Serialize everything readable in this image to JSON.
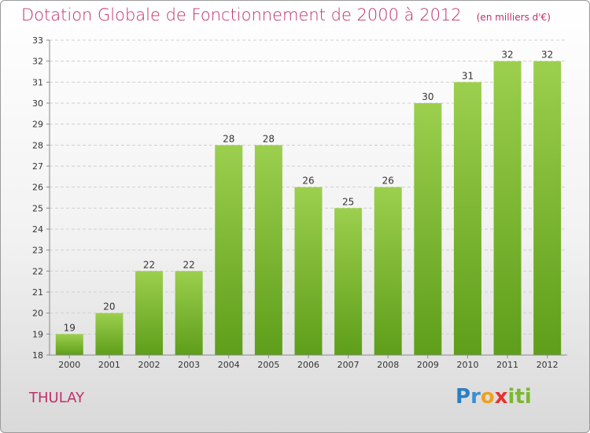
{
  "header": {
    "title": "Dotation Globale de Fonctionnement de 2000 à 2012",
    "subtitle": "(en milliers d'€)"
  },
  "footer": {
    "commune": "THULAY",
    "logo_letters": [
      "P",
      "r",
      "o",
      "x",
      "i",
      "t",
      "i"
    ],
    "logo_colors": [
      "#2c7fc0",
      "#3a8fd0",
      "#f0a020",
      "#e83030",
      "#7ab830",
      "#7ab830",
      "#7ab830"
    ]
  },
  "chart_data": {
    "type": "bar",
    "title": "Dotation Globale de Fonctionnement de 2000 à 2012",
    "subtitle": "(en milliers d'€)",
    "categories": [
      "2000",
      "2001",
      "2002",
      "2003",
      "2004",
      "2005",
      "2006",
      "2007",
      "2008",
      "2009",
      "2010",
      "2011",
      "2012"
    ],
    "values": [
      19,
      20,
      22,
      22,
      28,
      28,
      26,
      25,
      26,
      30,
      31,
      32,
      32
    ],
    "ylim": [
      18,
      33
    ],
    "yticks": [
      18,
      19,
      20,
      21,
      22,
      23,
      24,
      25,
      26,
      27,
      28,
      29,
      30,
      31,
      32,
      33
    ],
    "grid": true,
    "bar_color_top": "#9ccf4e",
    "bar_color_bottom": "#5e9e1a"
  }
}
